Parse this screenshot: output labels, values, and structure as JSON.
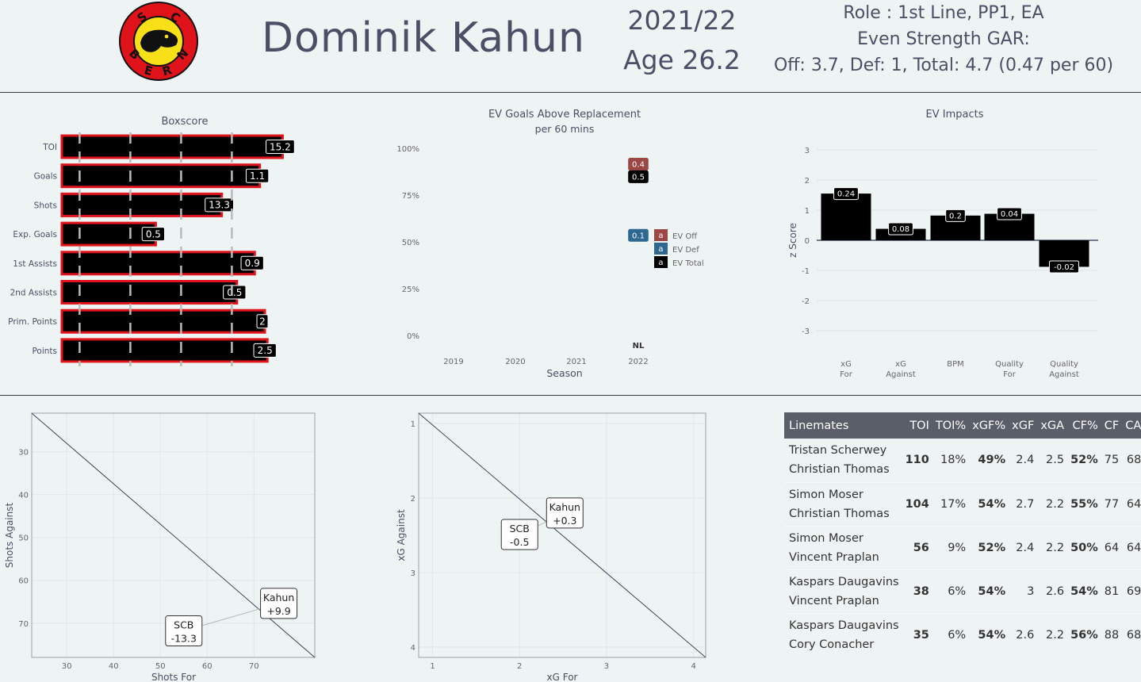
{
  "header": {
    "player": "Dominik  Kahun",
    "season": "2021/22",
    "age": "Age 26.2",
    "role": "Role : 1st Line,  PP1,  EA",
    "gar_title": "Even Strength GAR:",
    "gar_line": "Off: 3.7,  Def: 1,  Total: 4.7 (0.47 per 60)",
    "logo_letters": [
      "S",
      "C",
      "B",
      "E",
      "R",
      "N"
    ],
    "colors": {
      "red": "#e0131b",
      "yellow": "#f7e017",
      "black": "#000000"
    }
  },
  "chart_data": [
    {
      "type": "bar",
      "title": "Boxscore",
      "categories": [
        "TOI",
        "Goals",
        "Shots",
        "Exp. Goals",
        "1st Assists",
        "2nd Assists",
        "Prim. Points",
        "Points"
      ],
      "values": [
        15.2,
        1.1,
        13.3,
        0.5,
        0.9,
        0.5,
        2,
        2.5
      ],
      "percentiles": [
        0.87,
        0.78,
        0.63,
        0.37,
        0.76,
        0.69,
        0.8,
        0.81
      ],
      "colors": {
        "bar": "#000000",
        "outline": "#e0131b",
        "ref_lines": "#bbbbbb"
      }
    },
    {
      "type": "bar",
      "title": "EV Goals Above Replacement",
      "subtitle": "per 60 mins",
      "xlabel": "Season",
      "x_ticks": [
        "2019",
        "2020",
        "2021",
        "2022"
      ],
      "y_ticks": [
        "100%",
        "75%",
        "50%",
        "25%",
        "0%"
      ],
      "ylim": [
        0,
        1
      ],
      "league_label": "NL",
      "series": [
        {
          "name": "EV Off",
          "season": "2022",
          "label": "0.4",
          "y": 0.915,
          "color": "#9b4745"
        },
        {
          "name": "EV Def",
          "season": "2022",
          "label": "0.1",
          "y": 0.535,
          "color": "#2e6890"
        },
        {
          "name": "EV Total",
          "season": "2022",
          "label": "0.5",
          "y": 0.848,
          "color": "#000000"
        }
      ],
      "legend_glyph": "a",
      "legend_position": "right"
    },
    {
      "type": "bar",
      "title": "EV Impacts",
      "ylabel": "z Score",
      "ylim": [
        -3,
        3
      ],
      "categories": [
        "xG\nFor",
        "xG\nAgainst",
        "BPM",
        "Quality\nFor",
        "Quality\nAgainst"
      ],
      "values": [
        1.55,
        0.38,
        0.82,
        0.88,
        -0.88
      ],
      "labels": [
        "0.24",
        "0.08",
        "0.2",
        "0.04",
        "-0.02"
      ],
      "grid": true
    },
    {
      "type": "scatter",
      "xlabel": "Shots For",
      "ylabel": "Shots Against",
      "x_ticks": [
        30,
        40,
        50,
        60,
        70
      ],
      "y_ticks": [
        30,
        40,
        50,
        60,
        70
      ],
      "xlim": [
        22.5,
        83
      ],
      "ylim": [
        78,
        21
      ],
      "points": [
        {
          "name": "Kahun",
          "value": "+9.9",
          "x": 75.3,
          "y": 65.4
        },
        {
          "name": "SCB",
          "value": "-13.3",
          "x": 55,
          "y": 71.8
        }
      ]
    },
    {
      "type": "scatter",
      "xlabel": "xG For",
      "ylabel": "xG Against",
      "x_ticks": [
        1,
        2,
        3,
        4
      ],
      "y_ticks": [
        1,
        2,
        3,
        4
      ],
      "xlim": [
        0.84,
        4.14
      ],
      "ylim": [
        4.14,
        0.86
      ],
      "points": [
        {
          "name": "Kahun",
          "value": "+0.3",
          "x": 2.52,
          "y": 2.2
        },
        {
          "name": "SCB",
          "value": "-0.5",
          "x": 2.0,
          "y": 2.49
        }
      ]
    }
  ],
  "linemates": {
    "headers": [
      "Linemates",
      "TOI",
      "TOI%",
      "xGF%",
      "xGF",
      "xGA",
      "CF%",
      "CF",
      "CA"
    ],
    "rows": [
      {
        "names": [
          "Tristan Scherwey",
          "Christian Thomas"
        ],
        "toi": "110",
        "toi_pct": "18%",
        "xgf_pct": "49%",
        "xgf": "2.4",
        "xga": "2.5",
        "cf_pct": "52%",
        "cf": "75",
        "ca": "68"
      },
      {
        "names": [
          "Simon Moser",
          "Christian Thomas"
        ],
        "toi": "104",
        "toi_pct": "17%",
        "xgf_pct": "54%",
        "xgf": "2.7",
        "xga": "2.2",
        "cf_pct": "55%",
        "cf": "77",
        "ca": "64"
      },
      {
        "names": [
          "Simon Moser",
          "Vincent Praplan"
        ],
        "toi": "56",
        "toi_pct": "9%",
        "xgf_pct": "52%",
        "xgf": "2.4",
        "xga": "2.2",
        "cf_pct": "50%",
        "cf": "64",
        "ca": "64"
      },
      {
        "names": [
          "Kaspars Daugavins",
          "Vincent Praplan"
        ],
        "toi": "38",
        "toi_pct": "6%",
        "xgf_pct": "54%",
        "xgf": "3",
        "xga": "2.6",
        "cf_pct": "54%",
        "cf": "81",
        "ca": "69"
      },
      {
        "names": [
          "Kaspars Daugavins",
          "Cory Conacher"
        ],
        "toi": "35",
        "toi_pct": "6%",
        "xgf_pct": "54%",
        "xgf": "2.6",
        "xga": "2.2",
        "cf_pct": "56%",
        "cf": "88",
        "ca": "68"
      }
    ]
  }
}
